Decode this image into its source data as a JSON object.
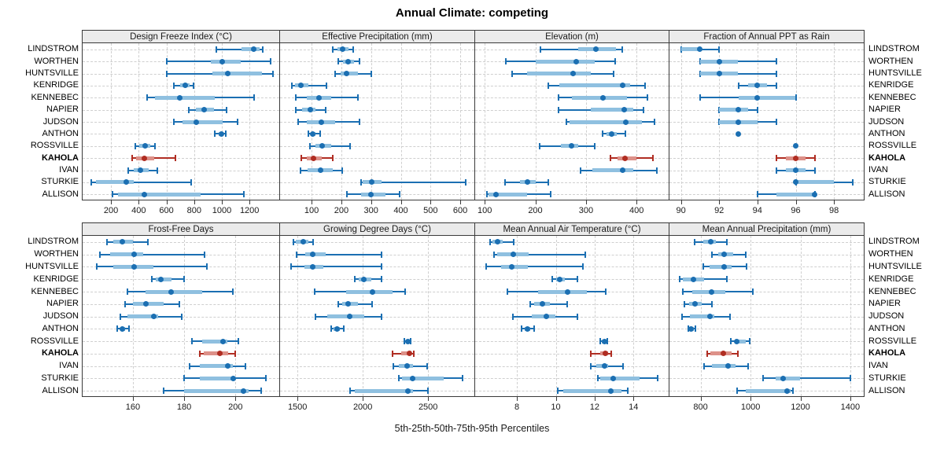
{
  "title": "Annual Climate: competing",
  "caption": "5th-25th-50th-75th-95th Percentiles",
  "sites": [
    "LINDSTROM",
    "WORTHEN",
    "HUNTSVILLE",
    "KENRIDGE",
    "KENNEBEC",
    "NAPIER",
    "JUDSON",
    "ANTHON",
    "ROSSVILLE",
    "KAHOLA",
    "IVAN",
    "STURKIE",
    "ALLISON"
  ],
  "highlight_site": "KAHOLA",
  "percentiles_shown": [
    5,
    25,
    50,
    75,
    95
  ],
  "colors": {
    "point_normal": "#1b6fb2",
    "band_normal": "#8fc0e0",
    "point_highlight": "#b02d22",
    "band_highlight": "#dd9189",
    "grid": "#cfcfcf",
    "panel_border": "#3a3a3a",
    "header_bg": "#ebebeb",
    "text": "#1a1a1a"
  },
  "chart_data": [
    {
      "type": "dotplot-percentiles",
      "title": "Design Freeze Index (°C)",
      "grid_row": 0,
      "grid_col": 0,
      "xlim": [
        -5,
        1420
      ],
      "ticks": [
        200,
        400,
        600,
        800,
        1000,
        1200
      ],
      "series": {
        "LINDSTROM": [
          960,
          1140,
          1230,
          1270,
          1295
        ],
        "WORTHEN": [
          600,
          920,
          1005,
          1135,
          1350
        ],
        "HUNTSVILLE": [
          600,
          930,
          1040,
          1290,
          1370
        ],
        "KENRIDGE": [
          655,
          700,
          735,
          770,
          795
        ],
        "KENNEBEC": [
          460,
          515,
          695,
          950,
          1235
        ],
        "NAPIER": [
          760,
          815,
          870,
          945,
          1035
        ],
        "JUDSON": [
          655,
          715,
          815,
          1005,
          1115
        ],
        "ANTHON": [
          950,
          975,
          995,
          1012,
          1030
        ],
        "ROSSVILLE": [
          375,
          405,
          445,
          485,
          515
        ],
        "KAHOLA": [
          355,
          380,
          440,
          510,
          665
        ],
        "IVAN": [
          325,
          365,
          410,
          470,
          535
        ],
        "STURKIE": [
          55,
          90,
          310,
          365,
          780
        ],
        "ALLISON": [
          210,
          250,
          440,
          845,
          1160
        ]
      }
    },
    {
      "type": "dotplot-percentiles",
      "title": "Effective Precipitation (mm)",
      "grid_row": 0,
      "grid_col": 1,
      "xlim": [
        -6,
        650
      ],
      "ticks": [
        100,
        200,
        300,
        400,
        500,
        600
      ],
      "series": {
        "LINDSTROM": [
          170,
          187,
          203,
          225,
          240
        ],
        "WORTHEN": [
          190,
          205,
          222,
          243,
          260
        ],
        "HUNTSVILLE": [
          178,
          198,
          218,
          255,
          300
        ],
        "KENRIDGE": [
          33,
          43,
          64,
          88,
          150
        ],
        "KENNEBEC": [
          48,
          83,
          125,
          167,
          255
        ],
        "NAPIER": [
          48,
          68,
          95,
          114,
          148
        ],
        "JUDSON": [
          54,
          83,
          132,
          180,
          260
        ],
        "ANTHON": [
          89,
          96,
          104,
          114,
          130
        ],
        "ROSSVILLE": [
          95,
          114,
          135,
          165,
          228
        ],
        "KAHOLA": [
          66,
          83,
          105,
          135,
          172
        ],
        "IVAN": [
          63,
          86,
          130,
          172,
          203
        ],
        "STURKIE": [
          265,
          272,
          303,
          336,
          618
        ],
        "ALLISON": [
          219,
          265,
          300,
          347,
          396
        ]
      }
    },
    {
      "type": "dotplot-percentiles",
      "title": "Elevation (m)",
      "grid_row": 0,
      "grid_col": 2,
      "xlim": [
        81,
        465
      ],
      "ticks": [
        100,
        200,
        300,
        400
      ],
      "series": {
        "LINDSTROM": [
          210,
          285,
          320,
          360,
          372
        ],
        "WORTHEN": [
          142,
          200,
          280,
          318,
          357
        ],
        "HUNTSVILLE": [
          154,
          183,
          275,
          310,
          355
        ],
        "KENRIDGE": [
          225,
          248,
          373,
          388,
          416
        ],
        "KENNEBEC": [
          246,
          272,
          333,
          381,
          422
        ],
        "NAPIER": [
          246,
          310,
          376,
          394,
          413
        ],
        "JUDSON": [
          262,
          267,
          378,
          410,
          435
        ],
        "ANTHON": [
          333,
          341,
          350,
          361,
          378
        ],
        "ROSSVILLE": [
          208,
          250,
          271,
          284,
          318
        ],
        "KAHOLA": [
          348,
          362,
          377,
          400,
          432
        ],
        "IVAN": [
          290,
          312,
          372,
          394,
          440
        ],
        "STURKIE": [
          140,
          170,
          185,
          201,
          225
        ],
        "ALLISON": [
          104,
          108,
          122,
          183,
          230
        ]
      }
    },
    {
      "type": "dotplot-percentiles",
      "title": "Fraction of Annual PPT as Rain",
      "grid_row": 0,
      "grid_col": 3,
      "xlim": [
        89.4,
        99.6
      ],
      "ticks": [
        90,
        92,
        94,
        96,
        98
      ],
      "series": {
        "LINDSTROM": [
          90,
          90,
          91,
          91,
          92
        ],
        "WORTHEN": [
          91,
          91,
          92,
          93,
          95
        ],
        "HUNTSVILLE": [
          91,
          91,
          92,
          93,
          95
        ],
        "KENRIDGE": [
          93,
          93.5,
          94,
          94.5,
          95
        ],
        "KENNEBEC": [
          91,
          93,
          94,
          96,
          96
        ],
        "NAPIER": [
          92,
          92,
          93,
          93.5,
          94
        ],
        "JUDSON": [
          92,
          92,
          93,
          94,
          95
        ],
        "ANTHON": [
          93,
          93,
          93,
          93,
          93
        ],
        "ROSSVILLE": [
          96,
          96,
          96,
          96,
          96
        ],
        "KAHOLA": [
          95,
          95.5,
          96,
          96.5,
          97
        ],
        "IVAN": [
          95,
          95.5,
          96,
          96.5,
          97
        ],
        "STURKIE": [
          96,
          96,
          96,
          98,
          99
        ],
        "ALLISON": [
          94,
          95,
          97,
          97,
          97
        ]
      }
    },
    {
      "type": "dotplot-percentiles",
      "title": "Frost-Free Days",
      "grid_row": 1,
      "grid_col": 0,
      "xlim": [
        140.4,
        217.4
      ],
      "ticks": [
        160,
        180,
        200
      ],
      "series": {
        "LINDSTROM": [
          150,
          152.5,
          156,
          160,
          166
        ],
        "WORTHEN": [
          147,
          151,
          160.5,
          164,
          188
        ],
        "HUNTSVILLE": [
          146,
          152.5,
          160.5,
          168,
          189
        ],
        "KENRIDGE": [
          167.5,
          169,
          171,
          175,
          180
        ],
        "KENNEBEC": [
          158,
          165,
          175,
          187,
          199
        ],
        "NAPIER": [
          157,
          160,
          165,
          172,
          178
        ],
        "JUDSON": [
          155,
          158,
          168,
          170,
          179
        ],
        "ANTHON": [
          154,
          155,
          156,
          157,
          158.5
        ],
        "ROSSVILLE": [
          183,
          187,
          195,
          197,
          201
        ],
        "KAHOLA": [
          186,
          187.5,
          194,
          197,
          200
        ],
        "IVAN": [
          182,
          186,
          197,
          199,
          204
        ],
        "STURKIE": [
          180,
          186,
          199,
          200,
          212
        ],
        "ALLISON": [
          172,
          180,
          203,
          205,
          210
        ]
      }
    },
    {
      "type": "dotplot-percentiles",
      "title": "Growing Degree Days (°C)",
      "grid_row": 1,
      "grid_col": 1,
      "xlim": [
        1366,
        2860
      ],
      "ticks": [
        1500,
        2000,
        2500
      ],
      "series": {
        "LINDSTROM": [
          1470,
          1485,
          1545,
          1580,
          1620
        ],
        "WORTHEN": [
          1490,
          1560,
          1615,
          1715,
          2145
        ],
        "HUNTSVILLE": [
          1450,
          1550,
          1615,
          1695,
          2145
        ],
        "KENRIDGE": [
          1940,
          1970,
          2010,
          2065,
          2145
        ],
        "KENNEBEC": [
          1630,
          1870,
          2075,
          2225,
          2325
        ],
        "NAPIER": [
          1810,
          1840,
          1885,
          1965,
          2070
        ],
        "JUDSON": [
          1635,
          1725,
          1900,
          2010,
          2145
        ],
        "ANTHON": [
          1760,
          1775,
          1805,
          1825,
          1855
        ],
        "ROSSVILLE": [
          2320,
          2330,
          2345,
          2355,
          2365
        ],
        "KAHOLA": [
          2225,
          2295,
          2355,
          2375,
          2390
        ],
        "IVAN": [
          2235,
          2275,
          2340,
          2385,
          2495
        ],
        "STURKIE": [
          2275,
          2300,
          2380,
          2620,
          2765
        ],
        "ALLISON": [
          1900,
          1940,
          2345,
          2385,
          2500
        ]
      }
    },
    {
      "type": "dotplot-percentiles",
      "title": "Mean Annual Air Temperature (°C)",
      "grid_row": 1,
      "grid_col": 2,
      "xlim": [
        5.85,
        15.85
      ],
      "ticks": [
        8,
        10,
        12,
        14
      ],
      "series": {
        "LINDSTROM": [
          6.6,
          6.75,
          7.0,
          7.25,
          7.85
        ],
        "WORTHEN": [
          6.8,
          7.0,
          7.8,
          8.6,
          11.5
        ],
        "HUNTSVILLE": [
          6.4,
          7.2,
          7.75,
          8.55,
          11.4
        ],
        "KENRIDGE": [
          9.8,
          10.0,
          10.2,
          10.45,
          11.1
        ],
        "KENNEBEC": [
          7.5,
          9.1,
          10.6,
          11.6,
          12.55
        ],
        "NAPIER": [
          8.7,
          8.9,
          9.3,
          9.7,
          10.6
        ],
        "JUDSON": [
          7.8,
          8.75,
          9.5,
          10.0,
          11.1
        ],
        "ANTHON": [
          8.25,
          8.4,
          8.55,
          8.7,
          8.9
        ],
        "ROSSVILLE": [
          12.3,
          12.35,
          12.5,
          12.6,
          12.65
        ],
        "KAHOLA": [
          11.8,
          12.3,
          12.55,
          12.7,
          12.85
        ],
        "IVAN": [
          11.8,
          12.1,
          12.5,
          12.7,
          13.45
        ],
        "STURKIE": [
          12.15,
          12.3,
          12.95,
          14.3,
          15.25
        ],
        "ALLISON": [
          10.1,
          10.4,
          12.85,
          13.4,
          13.7
        ]
      }
    },
    {
      "type": "dotplot-percentiles",
      "title": "Mean Annual Precipitation (mm)",
      "grid_row": 1,
      "grid_col": 3,
      "xlim": [
        675,
        1457
      ],
      "ticks": [
        800,
        1000,
        1200,
        1400
      ],
      "series": {
        "LINDSTROM": [
          775,
          810,
          840,
          860,
          905
        ],
        "WORTHEN": [
          845,
          870,
          893,
          930,
          980
        ],
        "HUNTSVILLE": [
          810,
          835,
          895,
          925,
          985
        ],
        "KENRIDGE": [
          715,
          730,
          770,
          815,
          905
        ],
        "KENNEBEC": [
          730,
          765,
          845,
          900,
          1010
        ],
        "NAPIER": [
          735,
          755,
          777,
          805,
          845
        ],
        "JUDSON": [
          725,
          758,
          837,
          855,
          918
        ],
        "ANTHON": [
          750,
          753,
          760,
          773,
          780
        ],
        "ROSSVILLE": [
          920,
          935,
          945,
          980,
          998
        ],
        "KAHOLA": [
          825,
          840,
          890,
          925,
          950
        ],
        "IVAN": [
          815,
          845,
          910,
          940,
          990
        ],
        "STURKIE": [
          1050,
          1100,
          1130,
          1200,
          1400
        ],
        "ALLISON": [
          945,
          980,
          1145,
          1160,
          1170
        ]
      }
    }
  ]
}
